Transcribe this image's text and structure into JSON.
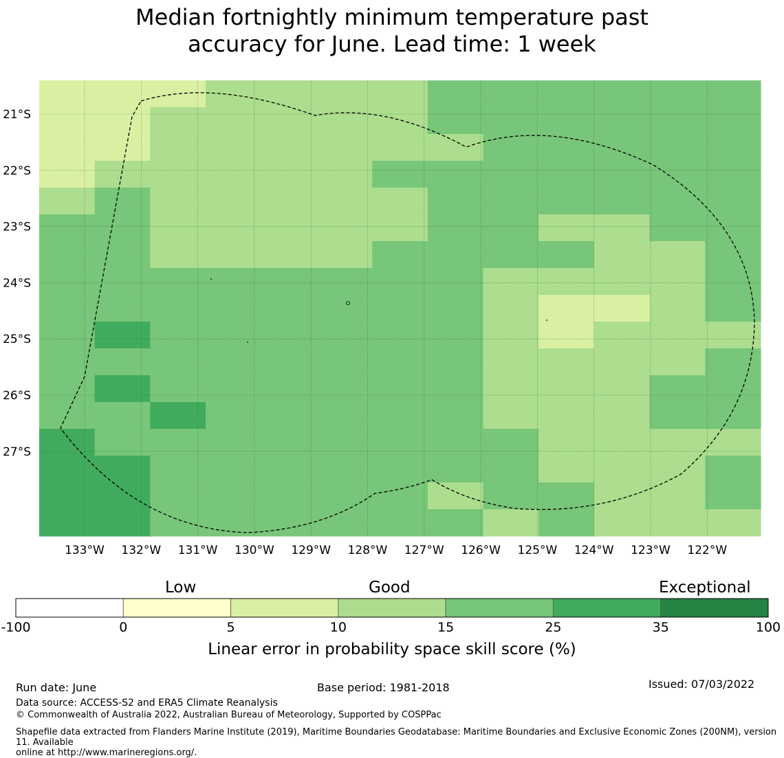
{
  "title": {
    "line1": "Median fortnightly minimum temperature past",
    "line2": "accuracy for June. Lead time: 1 week"
  },
  "map": {
    "lon_labels": [
      "133°W",
      "132°W",
      "131°W",
      "130°W",
      "129°W",
      "128°W",
      "127°W",
      "126°W",
      "125°W",
      "124°W",
      "123°W",
      "122°W"
    ],
    "lat_labels": [
      "21°S",
      "22°S",
      "23°S",
      "24°S",
      "25°S",
      "26°S",
      "27°S"
    ],
    "colors": [
      "#ffffff",
      "#ffffcc",
      "#d9f0a3",
      "#addd8e",
      "#78c679",
      "#41ab5d",
      "#238443"
    ],
    "grid": [
      "2223333444444",
      "2233333444444",
      "2233333344444",
      "2333334444444",
      "3433333444444",
      "4433333443344",
      "4433334444334",
      "4444444433334",
      "4444444432234",
      "4544444432333",
      "4444444433334",
      "4544444433344",
      "4454444433344",
      "5444444443333",
      "5544444443334",
      "5544444344334",
      "5544444434333"
    ]
  },
  "colorbar": {
    "categories": [
      "Low",
      "Good",
      "Exceptional"
    ],
    "ticks": [
      "-100",
      "0",
      "5",
      "10",
      "15",
      "25",
      "35",
      "100"
    ],
    "label": "Linear error in probability space skill score (%)"
  },
  "footer": {
    "run_date": "Run date: June",
    "base_period": "Base period: 1981-2018",
    "issued": "Issued: 07/03/2022",
    "data_source": "Data source: ACCESS-S2 and ERA5 Climate Reanalysis",
    "copyright": "© Commonwealth of Australia 2022, Australian Bureau of Meteorology, Supported by COSPPac",
    "shapefile_line1": "Shapefile data extracted from Flanders Marine Institute (2019), Maritime Boundaries Geodatabase: Maritime Boundaries and Exclusive Economic Zones (200NM), version 11. Available",
    "shapefile_line2": "online at http://www.marineregions.org/."
  }
}
